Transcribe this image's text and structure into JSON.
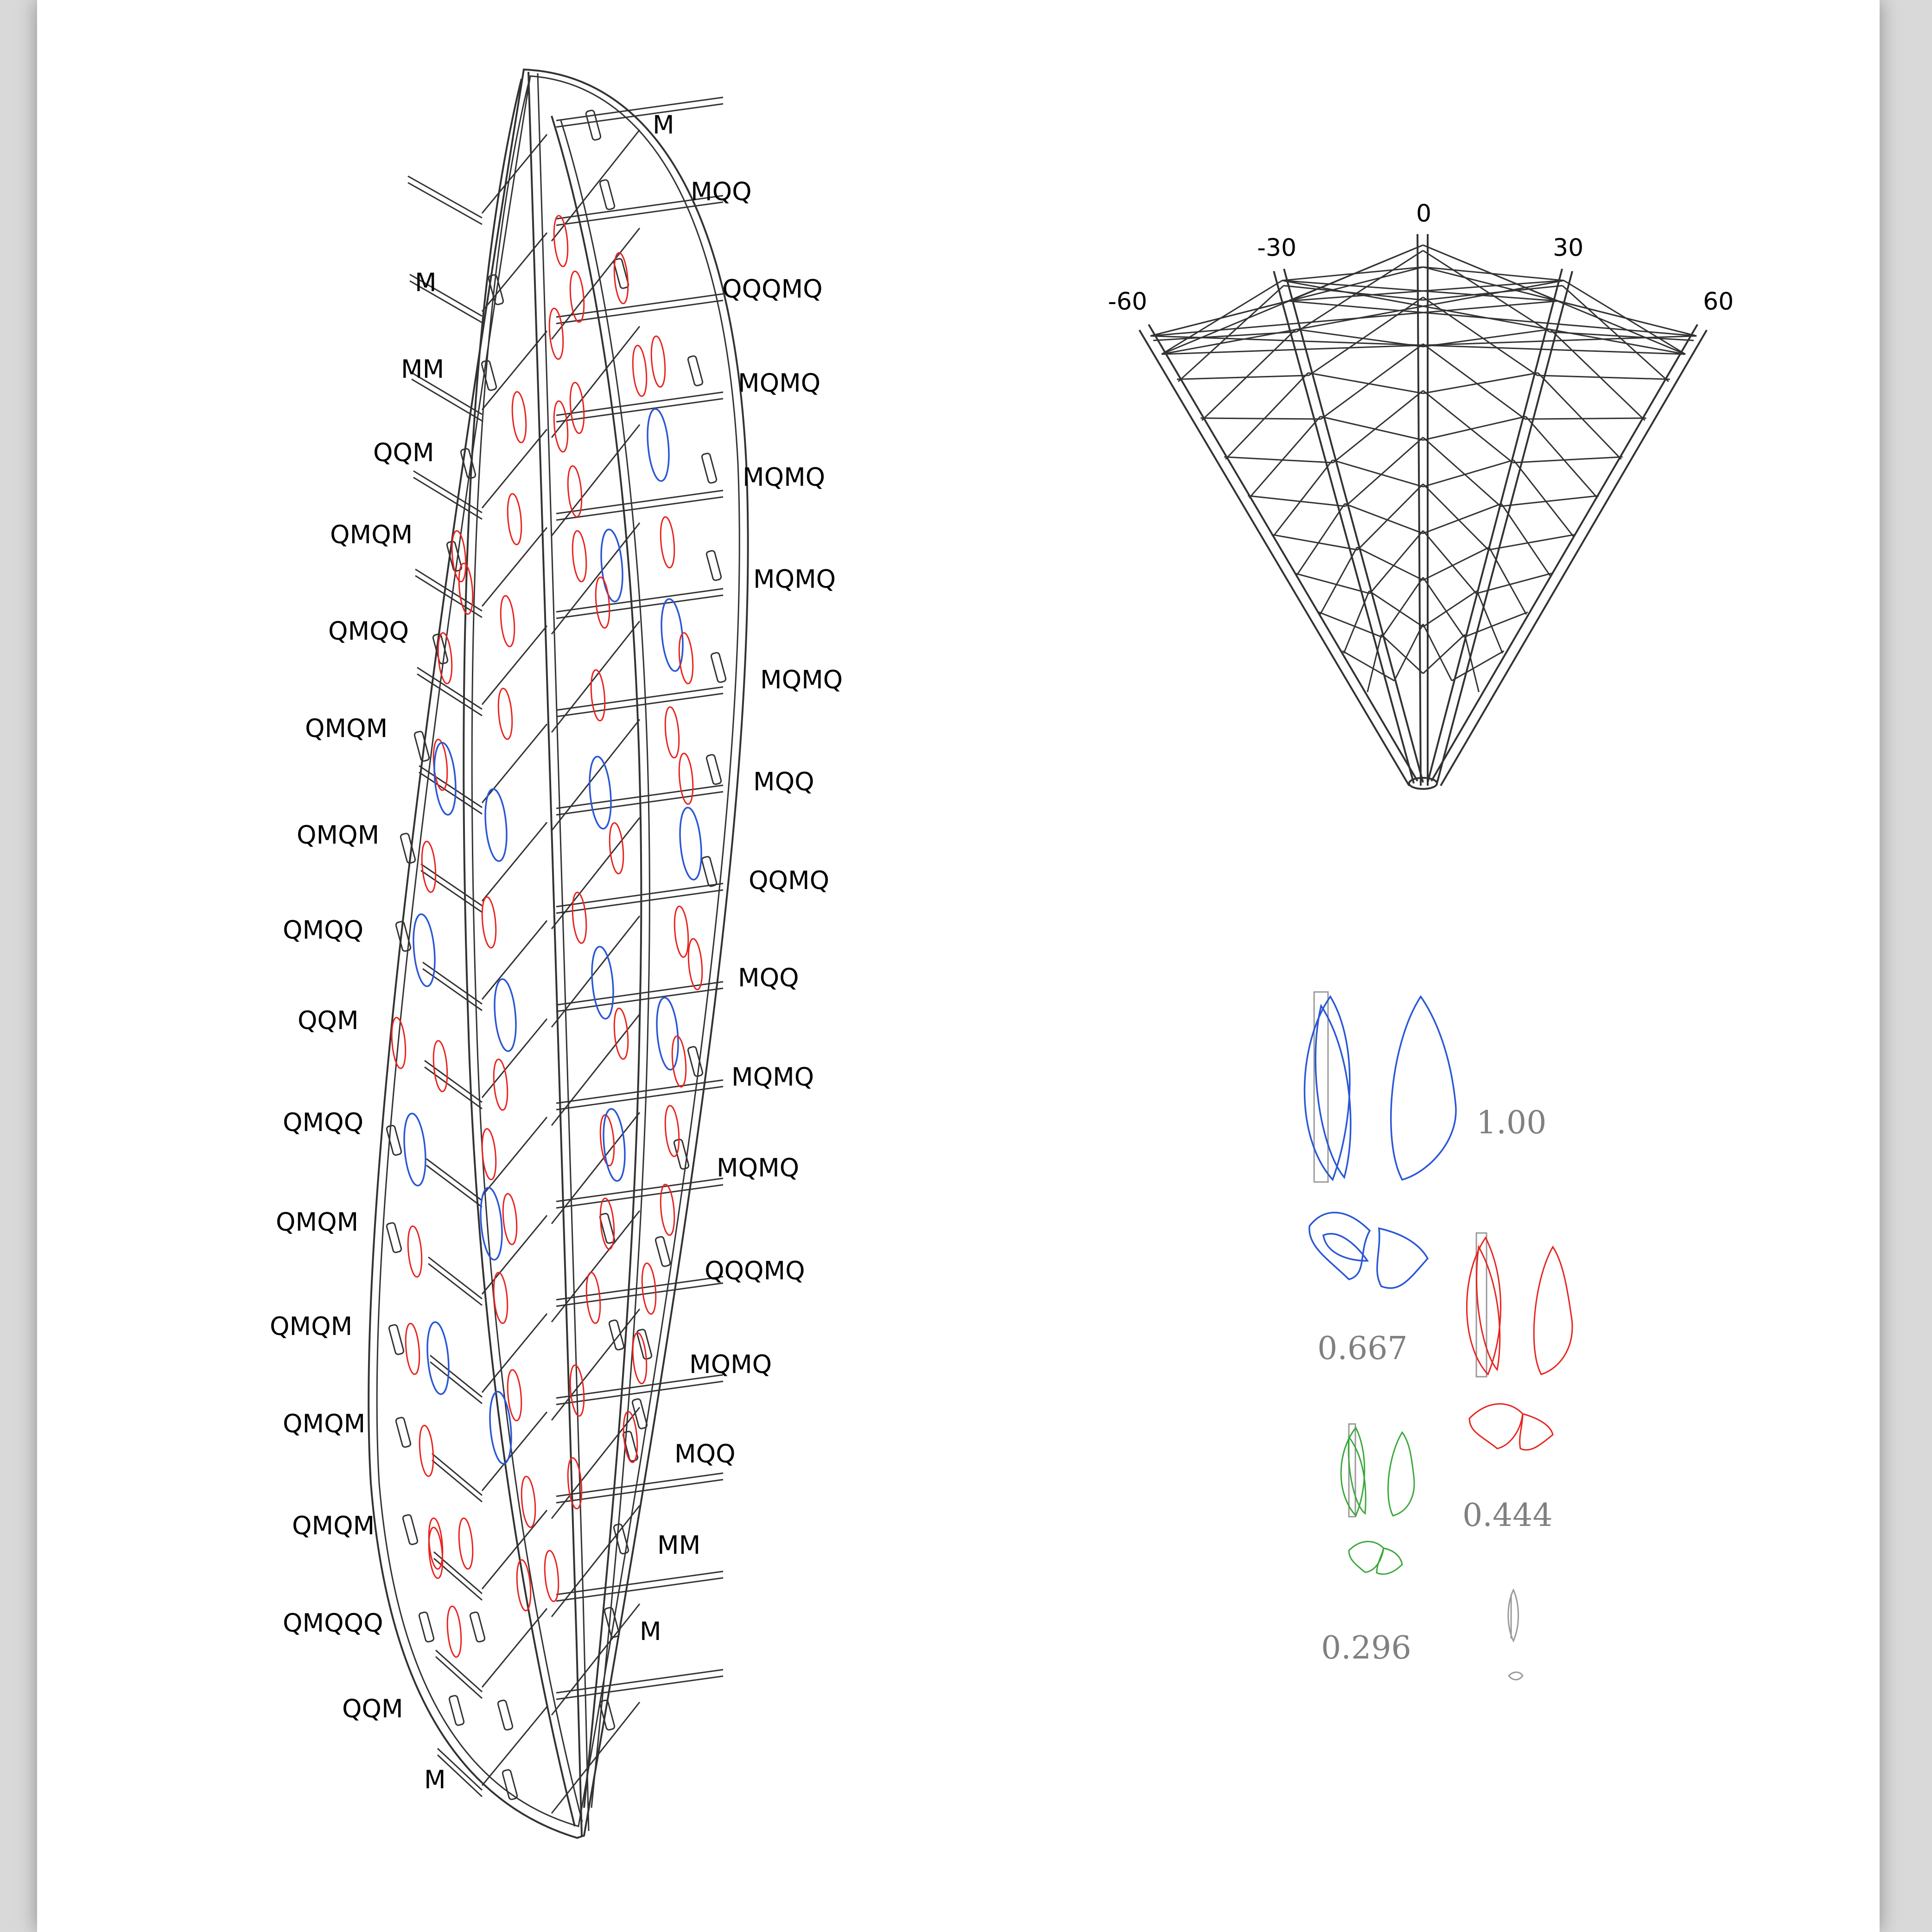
{
  "leaf": {
    "left_labels": [
      "M",
      "MM",
      "QQM",
      "QMQM",
      "QMQQ",
      "QMQM",
      "QMQM",
      "QMQQ",
      "QQM",
      "QMQQ",
      "QMQM",
      "QMQM",
      "QMQM",
      "QMQM",
      "QMQQQ",
      "QQM",
      "M"
    ],
    "right_labels": [
      "M",
      "MQQ",
      "QQQMQ",
      "MQMQ",
      "MQMQ",
      "MQMQ",
      "MQMQ",
      "MQQ",
      "QQMQ",
      "MQQ",
      "MQMQ",
      "MQMQ",
      "QQQMQ",
      "MQMQ",
      "MQQ",
      "MM",
      "M"
    ]
  },
  "fan": {
    "angle_labels": [
      "-60",
      "-30",
      "0",
      "30",
      "60"
    ]
  },
  "scales": {
    "values": [
      "1.00",
      "0.667",
      "0.444",
      "0.296"
    ]
  },
  "colors": {
    "red": "#e8241f",
    "blue": "#2a57d6",
    "green": "#3aa83a",
    "grey": "#9a9a9a"
  }
}
